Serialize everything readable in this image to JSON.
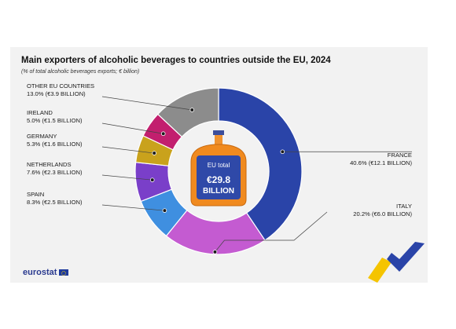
{
  "header": {
    "title": "Main exporters of alcoholic beverages to countries outside the EU, 2024",
    "subtitle": "(% of total alcoholic beverages exports; € billion)"
  },
  "chart_data": {
    "type": "pie",
    "donut": true,
    "title": "Main exporters of alcoholic beverages to countries outside the EU, 2024",
    "subtitle": "(% of total alcoholic beverages exports; € billion)",
    "slices": [
      {
        "name": "FRANCE",
        "percent": 40.6,
        "value": 12.1,
        "label": "40.6% (€12.1 BILLION)",
        "color": "#2a44a8"
      },
      {
        "name": "ITALY",
        "percent": 20.2,
        "value": 6.0,
        "label": "20.2% (€6.0 BILLION)",
        "color": "#c45bd1"
      },
      {
        "name": "SPAIN",
        "percent": 8.3,
        "value": 2.5,
        "label": "8.3% (€2.5 BILLION)",
        "color": "#3f8fe0"
      },
      {
        "name": "NETHERLANDS",
        "percent": 7.6,
        "value": 2.3,
        "label": "7.6% (€2.3 BILLION)",
        "color": "#7a3fc9"
      },
      {
        "name": "GERMANY",
        "percent": 5.3,
        "value": 1.6,
        "label": "5.3% (€1.6 BILLION)",
        "color": "#c9a21c"
      },
      {
        "name": "IRELAND",
        "percent": 5.0,
        "value": 1.5,
        "label": "5.0% (€1.5 BILLION)",
        "color": "#c21f6e"
      },
      {
        "name": "OTHER EU COUNTRIES",
        "percent": 13.0,
        "value": 3.9,
        "label": "13.0% (€3.9 BILLION)",
        "color": "#8c8c8c"
      }
    ],
    "center": {
      "line1": "EU total",
      "line2": "€29.8",
      "line3": "BILLION",
      "total": 29.8
    }
  },
  "branding": {
    "logo_text": "eurostat"
  }
}
